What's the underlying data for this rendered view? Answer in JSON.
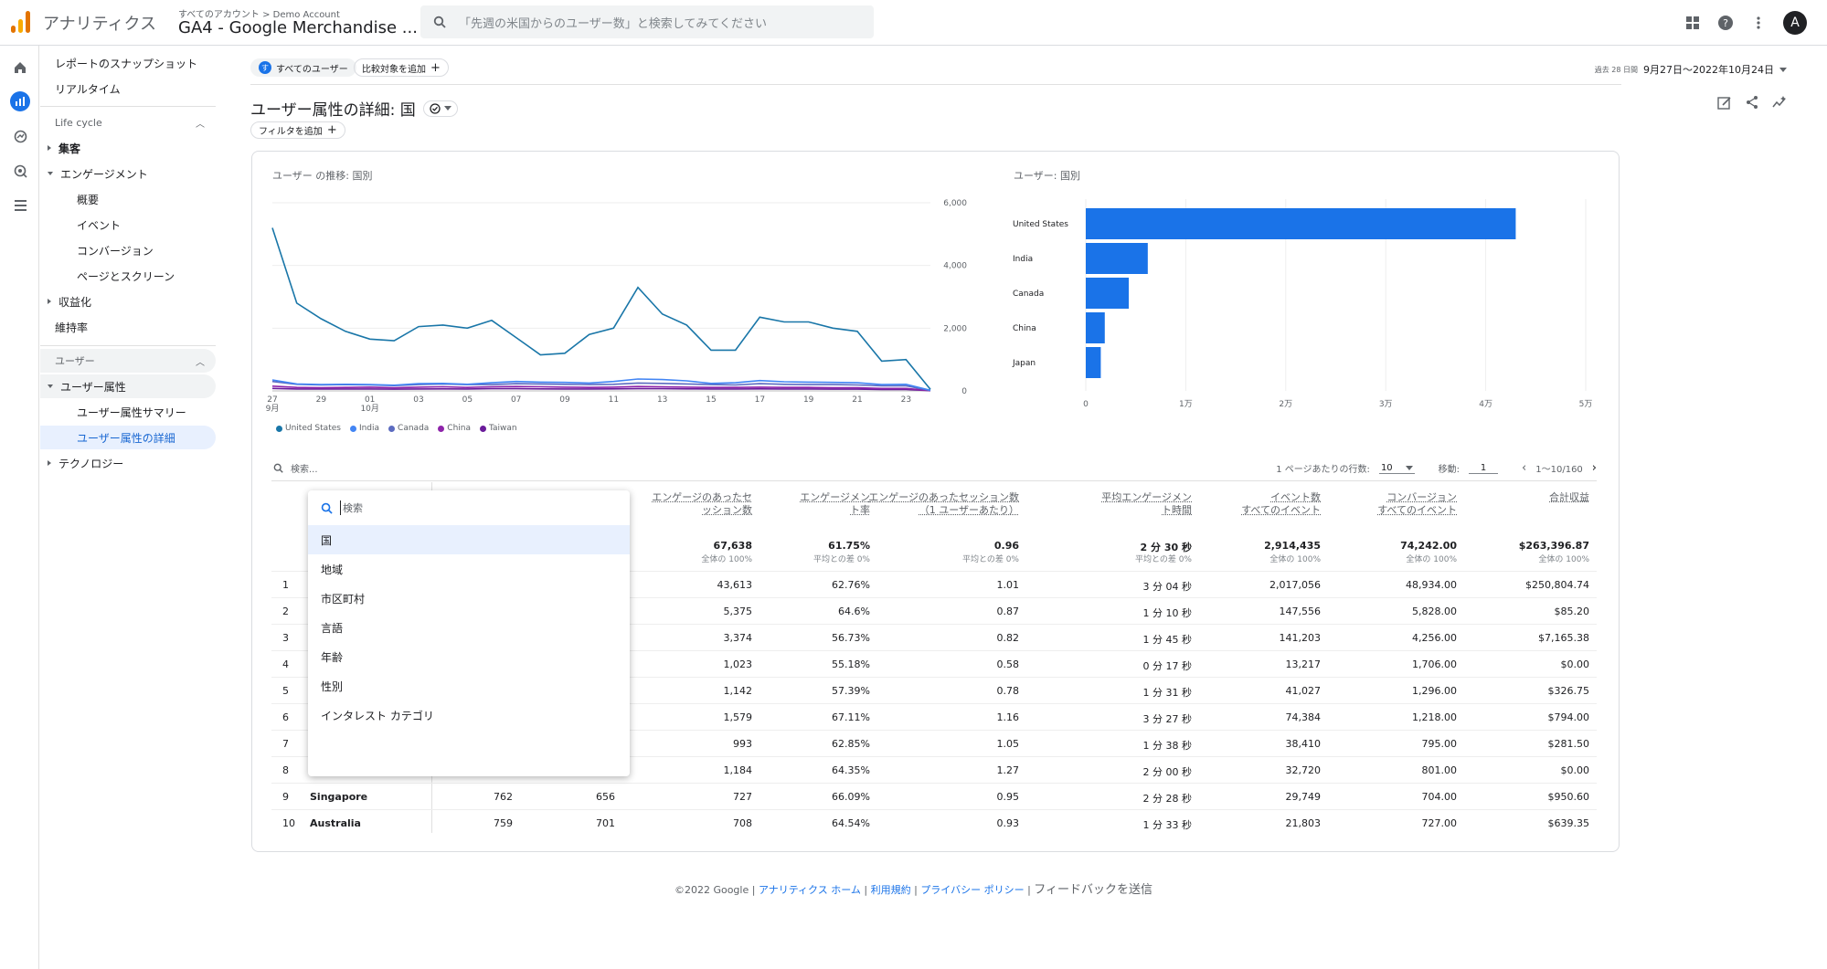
{
  "topbar": {
    "app_name": "アナリティクス",
    "breadcrumb": "すべてのアカウント > Demo Account",
    "property": "GA4 - Google Merchandise ...",
    "search_placeholder": "「先週の米国からのユーザー数」と検索してみてください",
    "avatar_letter": "A"
  },
  "sidebar": {
    "top_items": [
      "レポートのスナップショット",
      "リアルタイム"
    ],
    "lifecycle_label": "Life cycle",
    "lifecycle_items": [
      "集客",
      "エンゲージメント",
      "概要",
      "イベント",
      "コンバージョン",
      "ページとスクリーン",
      "収益化",
      "維持率"
    ],
    "user_label": "ユーザー",
    "user_items": [
      "ユーザー属性",
      "ユーザー属性サマリー",
      "ユーザー属性の詳細",
      "テクノロジー"
    ]
  },
  "filters": {
    "all_users_badge": "す",
    "all_users": "すべてのユーザー",
    "add_compare": "比較対象を追加",
    "add_filter": "フィルタを追加"
  },
  "page": {
    "title": "ユーザー属性の詳細: 国",
    "date_prefix": "過去 28 日間",
    "date_range": "9月27日～2022年10月24日"
  },
  "line_chart_title": "ユーザー の推移: 国別",
  "bar_chart_title": "ユーザー: 国別",
  "chart_data": [
    {
      "type": "line",
      "x_ticks": [
        "27\n9月",
        "29",
        "01\n10月",
        "03",
        "05",
        "07",
        "09",
        "11",
        "13",
        "15",
        "17",
        "19",
        "21",
        "23"
      ],
      "ylim": [
        0,
        6000
      ],
      "y_ticks": [
        "6,000",
        "4,000",
        "2,000",
        "0"
      ],
      "series": [
        {
          "name": "United States",
          "color": "#1976a8",
          "values": [
            5200,
            2800,
            2300,
            1900,
            1650,
            1600,
            2050,
            2100,
            2000,
            2250,
            1700,
            1150,
            1200,
            1800,
            2000,
            3300,
            2450,
            2100,
            1300,
            1300,
            2350,
            2200,
            2200,
            2000,
            1900,
            950,
            1000,
            50
          ]
        },
        {
          "name": "India",
          "color": "#4285f4",
          "values": [
            350,
            220,
            200,
            210,
            200,
            180,
            230,
            240,
            210,
            260,
            300,
            280,
            270,
            250,
            300,
            380,
            360,
            320,
            240,
            260,
            330,
            290,
            280,
            270,
            260,
            200,
            210,
            20
          ]
        },
        {
          "name": "Canada",
          "color": "#5c6bc0",
          "values": [
            300,
            210,
            190,
            200,
            190,
            170,
            200,
            220,
            200,
            200,
            230,
            220,
            210,
            200,
            210,
            250,
            240,
            220,
            200,
            190,
            230,
            210,
            200,
            200,
            190,
            160,
            160,
            15
          ]
        },
        {
          "name": "China",
          "color": "#8e24aa",
          "values": [
            150,
            110,
            100,
            110,
            120,
            100,
            120,
            130,
            110,
            130,
            140,
            130,
            120,
            110,
            120,
            140,
            130,
            120,
            110,
            110,
            120,
            110,
            110,
            100,
            100,
            80,
            80,
            10
          ]
        },
        {
          "name": "Taiwan",
          "color": "#6a1b9a",
          "values": [
            80,
            60,
            60,
            60,
            60,
            55,
            60,
            65,
            60,
            70,
            70,
            65,
            60,
            60,
            65,
            70,
            70,
            65,
            60,
            60,
            65,
            60,
            60,
            55,
            55,
            45,
            45,
            5
          ]
        }
      ]
    },
    {
      "type": "bar",
      "orientation": "horizontal",
      "categories": [
        "United States",
        "India",
        "Canada",
        "China",
        "Japan"
      ],
      "values": [
        43000,
        6200,
        4300,
        1900,
        1500
      ],
      "x_ticks": [
        "0",
        "1万",
        "2万",
        "3万",
        "4万",
        "5万"
      ],
      "xlim": [
        0,
        50000
      ],
      "color": "#1a73e8"
    }
  ],
  "table_bar": {
    "search_placeholder": "検索...",
    "rows_per_page_label": "1 ページあたりの行数:",
    "rows_per_page": "10",
    "goto_label": "移動:",
    "goto_value": "1",
    "range": "1〜10/160"
  },
  "table": {
    "headers": [
      {
        "line1": "エンゲージのあったセ",
        "line2": "ッション数",
        "sub": ""
      },
      {
        "line1": "エンゲージメン",
        "line2": "ト率",
        "sub": ""
      },
      {
        "line1": "エンゲージのあったセッション数",
        "line2": "（1 ユーザーあたり）",
        "sub": ""
      },
      {
        "line1": "平均エンゲージメン",
        "line2": "ト時間",
        "sub": ""
      },
      {
        "line1": "イベント数",
        "line2": "すべてのイベント",
        "sub": ""
      },
      {
        "line1": "コンバージョン",
        "line2": "すべてのイベント",
        "sub": ""
      },
      {
        "line1": "合計収益",
        "line2": "",
        "sub": ""
      }
    ],
    "totals": [
      "67,638",
      "61.75%",
      "0.96",
      "2 分 30 秒",
      "2,914,435",
      "74,242.00",
      "$263,396.87"
    ],
    "totals_sub": [
      "全体の 100%",
      "平均との差 0%",
      "平均との差 0%",
      "平均との差 0%",
      "全体の 100%",
      "全体の 100%",
      "全体の 100%"
    ],
    "rows": [
      {
        "n": "1",
        "country": "",
        "users": "",
        "new_users": "",
        "vals": [
          "43,613",
          "62.76%",
          "1.01",
          "3 分 04 秒",
          "2,017,056",
          "48,934.00",
          "$250,804.74"
        ]
      },
      {
        "n": "2",
        "country": "",
        "users": "",
        "new_users": "",
        "vals": [
          "5,375",
          "64.6%",
          "0.87",
          "1 分 10 秒",
          "147,556",
          "5,828.00",
          "$85.20"
        ]
      },
      {
        "n": "3",
        "country": "",
        "users": "",
        "new_users": "",
        "vals": [
          "3,374",
          "56.73%",
          "0.82",
          "1 分 45 秒",
          "141,203",
          "4,256.00",
          "$7,165.38"
        ]
      },
      {
        "n": "4",
        "country": "",
        "users": "",
        "new_users": "",
        "vals": [
          "1,023",
          "55.18%",
          "0.58",
          "0 分 17 秒",
          "13,217",
          "1,706.00",
          "$0.00"
        ]
      },
      {
        "n": "5",
        "country": "",
        "users": "",
        "new_users": "",
        "vals": [
          "1,142",
          "57.39%",
          "0.78",
          "1 分 31 秒",
          "41,027",
          "1,296.00",
          "$326.75"
        ]
      },
      {
        "n": "6",
        "country": "",
        "users": "",
        "new_users": "",
        "vals": [
          "1,579",
          "67.11%",
          "1.16",
          "3 分 27 秒",
          "74,384",
          "1,218.00",
          "$794.00"
        ]
      },
      {
        "n": "7",
        "country": "",
        "users": "",
        "new_users": "",
        "vals": [
          "993",
          "62.85%",
          "1.05",
          "1 分 38 秒",
          "38,410",
          "795.00",
          "$281.50"
        ]
      },
      {
        "n": "8",
        "country": "",
        "users": "",
        "new_users": "",
        "vals": [
          "1,184",
          "64.35%",
          "1.27",
          "2 分 00 秒",
          "32,720",
          "801.00",
          "$0.00"
        ]
      },
      {
        "n": "9",
        "country": "Singapore",
        "users": "762",
        "new_users": "656",
        "vals": [
          "727",
          "66.09%",
          "0.95",
          "2 分 28 秒",
          "29,749",
          "704.00",
          "$950.60"
        ]
      },
      {
        "n": "10",
        "country": "Australia",
        "users": "759",
        "new_users": "701",
        "vals": [
          "708",
          "64.54%",
          "0.93",
          "1 分 33 秒",
          "21,803",
          "727.00",
          "$639.35"
        ]
      }
    ]
  },
  "dropdown": {
    "search_placeholder": "検索",
    "items": [
      "国",
      "地域",
      "市区町村",
      "言語",
      "年齢",
      "性別",
      "インタレスト カテゴリ"
    ]
  },
  "footer": {
    "copyright": "©2022 Google | ",
    "links": [
      "アナリティクス ホーム",
      "利用規約",
      "プライバシー ポリシー"
    ],
    "feedback": "フィードバックを送信"
  },
  "colors": {
    "accent": "#1a73e8",
    "selected_bg": "#e8f0fe"
  }
}
